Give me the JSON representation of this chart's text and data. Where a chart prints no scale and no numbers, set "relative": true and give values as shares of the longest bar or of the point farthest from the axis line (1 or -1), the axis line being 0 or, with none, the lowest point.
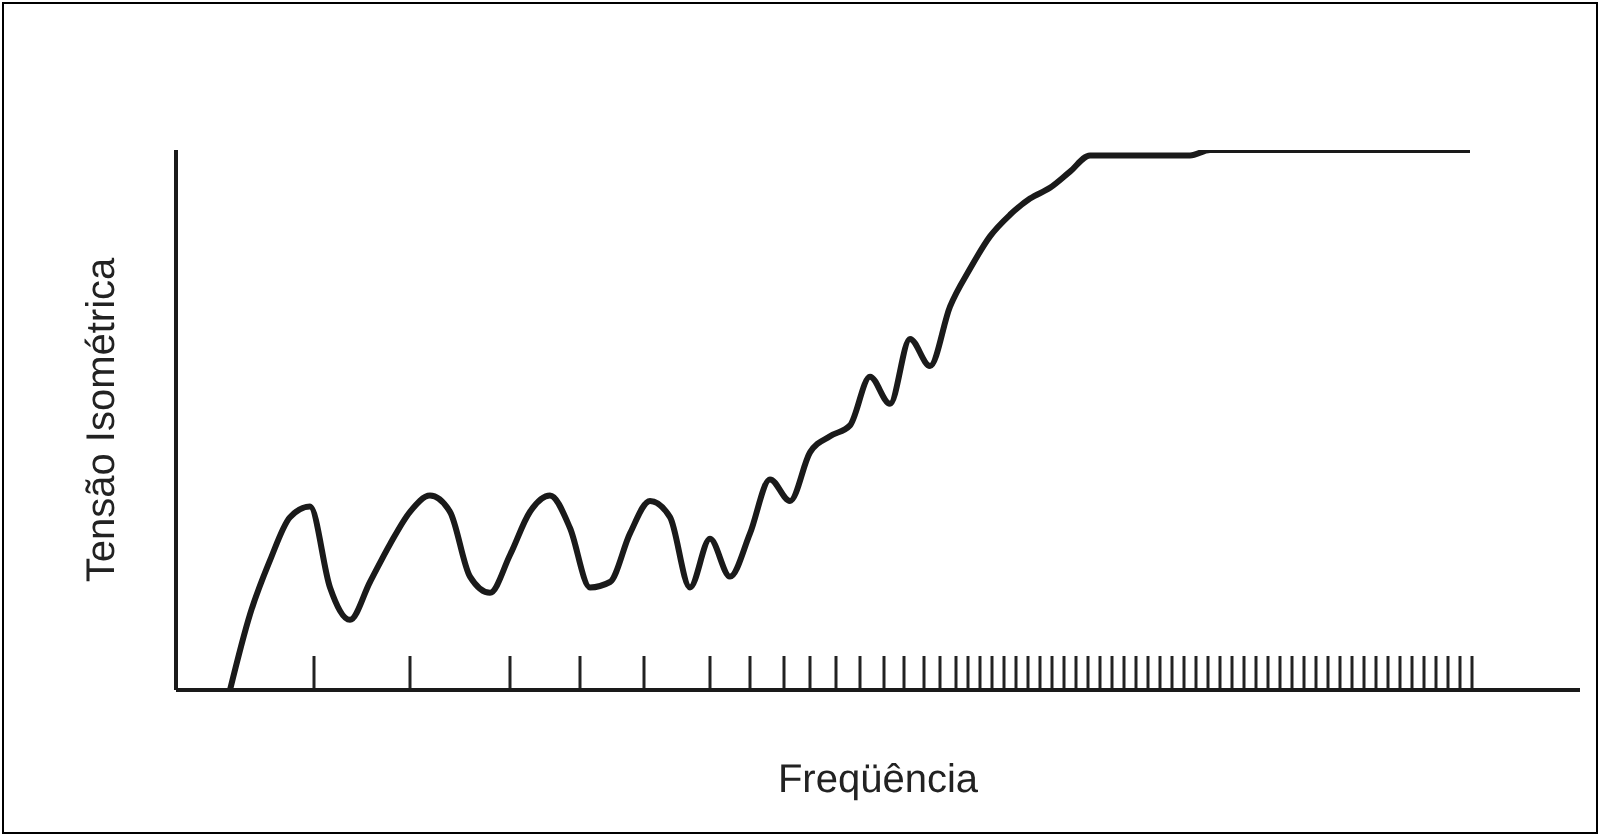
{
  "chart_data": {
    "type": "line",
    "relative": true,
    "xlabel": "Freqüência",
    "ylabel": "Tensão Isométrica",
    "color": "#1a1a1a",
    "grid": false,
    "legend": false,
    "marker": "none",
    "line_style": "solid",
    "categories": [
      null,
      null,
      null,
      null,
      null,
      null,
      null,
      null,
      null,
      null,
      null,
      null,
      null,
      null,
      null,
      null,
      null,
      null,
      null,
      null,
      null,
      null,
      null,
      null,
      null,
      null,
      null,
      null,
      null,
      null,
      null,
      null,
      null,
      null,
      null,
      null,
      null,
      null,
      null,
      null,
      null,
      null,
      null,
      null,
      null,
      null,
      null,
      null,
      null,
      null,
      null,
      null,
      null,
      null,
      null,
      null,
      null,
      null,
      null,
      null,
      null,
      null,
      null
    ],
    "values": [
      0,
      0.14,
      0.24,
      0.32,
      0.34,
      0.19,
      0.13,
      0.2,
      0.27,
      0.33,
      0.36,
      0.33,
      0.21,
      0.18,
      0.25,
      0.33,
      0.36,
      0.3,
      0.19,
      0.2,
      0.29,
      0.35,
      0.32,
      0.19,
      0.28,
      0.21,
      0.29,
      0.39,
      0.35,
      0.44,
      0.47,
      0.49,
      0.58,
      0.53,
      0.65,
      0.6,
      0.71,
      0.78,
      0.84,
      0.88,
      0.91,
      0.93,
      0.96,
      0.99,
      0.99,
      0.99,
      0.99,
      0.99,
      0.99,
      1,
      1,
      1,
      1,
      1,
      1,
      1,
      1,
      1,
      1,
      1,
      1,
      1,
      1
    ]
  }
}
